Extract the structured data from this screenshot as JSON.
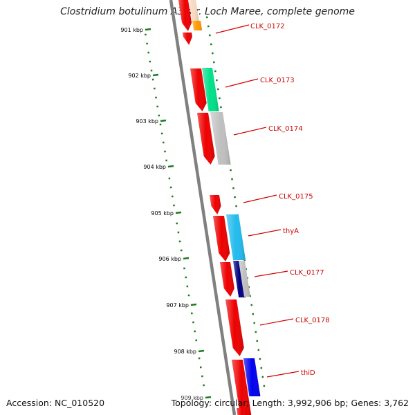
{
  "title": "Clostridium botulinum A3 str. Loch Maree, complete genome",
  "footer": {
    "accession": "Accession: NC_010520",
    "stats": "Topology: circular; Length: 3,992,906 bp; Genes: 3,762"
  },
  "colors": {
    "backbone": "#808080",
    "ticks": "#1a7a1a",
    "cds": "#ee0000",
    "label_line": "#d00000",
    "label_text": "#cc0000"
  },
  "ticks": [
    {
      "label": "901 kbp"
    },
    {
      "label": "902 kbp"
    },
    {
      "label": "903 kbp"
    },
    {
      "label": "904 kbp"
    },
    {
      "label": "905 kbp"
    },
    {
      "label": "906 kbp"
    },
    {
      "label": "907 kbp"
    },
    {
      "label": "908 kbp"
    },
    {
      "label": "909 kbp"
    }
  ],
  "gene_labels": [
    {
      "name": "CLK_0172"
    },
    {
      "name": "CLK_0173"
    },
    {
      "name": "CLK_0174"
    },
    {
      "name": "CLK_0175"
    },
    {
      "name": "thyA"
    },
    {
      "name": "CLK_0177"
    },
    {
      "name": "CLK_0178"
    },
    {
      "name": "thiD"
    }
  ],
  "cds_features": [
    {
      "name": "cds-red"
    },
    {
      "name": "cds-red"
    },
    {
      "name": "cds-red"
    },
    {
      "name": "cds-red"
    },
    {
      "name": "cds-red"
    },
    {
      "name": "cds-red"
    },
    {
      "name": "cds-red"
    },
    {
      "name": "cds-red"
    },
    {
      "name": "cds-red"
    },
    {
      "name": "cds-red"
    }
  ],
  "cog_features": [
    {
      "name": "cog-pink",
      "color": "#f4b0b0"
    },
    {
      "name": "cog-peach",
      "color": "#f8d8c0"
    },
    {
      "name": "cog-orange",
      "color": "#ff9900"
    },
    {
      "name": "cog-green",
      "color": "#00e08a"
    },
    {
      "name": "cog-grey",
      "color": "#c0c0c0"
    },
    {
      "name": "cog-cyan",
      "color": "#22bbee"
    },
    {
      "name": "cog-navy",
      "color": "#000080"
    },
    {
      "name": "cog-grey",
      "color": "#c0c0c0"
    },
    {
      "name": "cog-blue",
      "color": "#0000ee"
    }
  ]
}
